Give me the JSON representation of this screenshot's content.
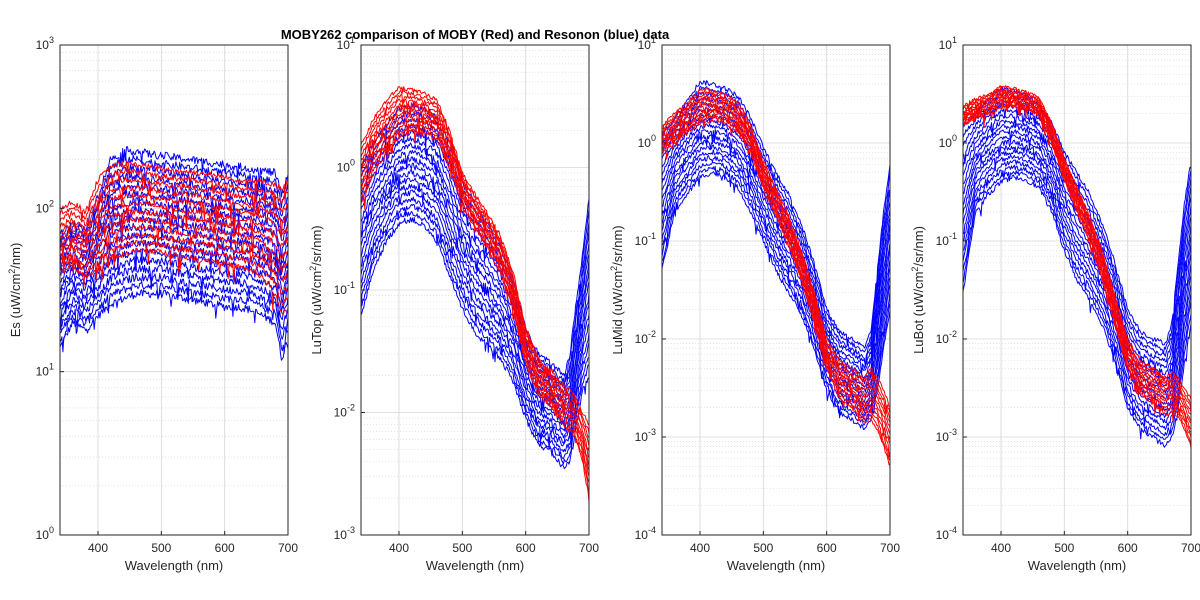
{
  "figure_title": "MOBY262 comparison of MOBY (Red) and Resonon (blue) data",
  "colors": {
    "moby": "#ff0000",
    "resonon": "#0000ff",
    "axis": "#262626"
  },
  "chart_data": [
    {
      "type": "line",
      "panel": "Es",
      "yscale": "log",
      "xlabel": "Wavelength (nm)",
      "ylabel_main": "Es (uW/cm",
      "ylabel_sup": "2",
      "ylabel_tail": "/nm)",
      "xlim": [
        340,
        700
      ],
      "ylim": [
        1,
        1000
      ],
      "xticks": [
        "400",
        "500",
        "600",
        "700"
      ],
      "yticks": [
        {
          "base": "10",
          "exp": "0"
        },
        {
          "base": "10",
          "exp": "1"
        },
        {
          "base": "10",
          "exp": "2"
        },
        {
          "base": "10",
          "exp": "3"
        }
      ],
      "series": [
        {
          "name": "Resonon",
          "color": "#0000ff",
          "count": 18,
          "x": [
            340,
            360,
            380,
            400,
            420,
            440,
            460,
            480,
            500,
            520,
            540,
            560,
            580,
            600,
            620,
            640,
            660,
            680,
            690,
            700
          ],
          "low": [
            14,
            20,
            18,
            22,
            26,
            28,
            30,
            30,
            30,
            29,
            28,
            27,
            26,
            25,
            25,
            24,
            22,
            20,
            12,
            16
          ],
          "high": [
            70,
            80,
            75,
            120,
            200,
            225,
            225,
            215,
            210,
            205,
            200,
            195,
            190,
            185,
            180,
            175,
            170,
            165,
            120,
            160
          ]
        },
        {
          "name": "MOBY",
          "color": "#ff0000",
          "count": 12,
          "x": [
            340,
            360,
            380,
            400,
            420,
            440,
            460,
            480,
            500,
            520,
            540,
            560,
            580,
            600,
            620,
            640,
            660,
            680,
            690,
            700
          ],
          "low": [
            40,
            45,
            38,
            42,
            50,
            52,
            55,
            55,
            54,
            52,
            50,
            49,
            48,
            46,
            44,
            42,
            38,
            30,
            22,
            24
          ],
          "high": [
            100,
            110,
            95,
            150,
            180,
            190,
            185,
            180,
            175,
            170,
            168,
            165,
            160,
            155,
            150,
            148,
            145,
            140,
            130,
            150
          ]
        }
      ]
    },
    {
      "type": "line",
      "panel": "LuTop",
      "yscale": "log",
      "xlabel": "Wavelength (nm)",
      "ylabel_main": "LuTop (uW/cm",
      "ylabel_sup": "2",
      "ylabel_tail": "/sr/nm)",
      "xlim": [
        340,
        700
      ],
      "ylim": [
        0.001,
        10
      ],
      "xticks": [
        "400",
        "500",
        "600",
        "700"
      ],
      "yticks": [
        {
          "base": "10",
          "exp": "-3"
        },
        {
          "base": "10",
          "exp": "-2"
        },
        {
          "base": "10",
          "exp": "-1"
        },
        {
          "base": "10",
          "exp": "0"
        },
        {
          "base": "10",
          "exp": "1"
        }
      ],
      "series": [
        {
          "name": "Resonon",
          "color": "#0000ff",
          "count": 18,
          "x": [
            340,
            360,
            380,
            400,
            420,
            440,
            460,
            480,
            500,
            520,
            540,
            560,
            580,
            600,
            620,
            640,
            660,
            670,
            680,
            690,
            700
          ],
          "low": [
            0.06,
            0.15,
            0.25,
            0.35,
            0.38,
            0.33,
            0.25,
            0.13,
            0.07,
            0.045,
            0.035,
            0.028,
            0.018,
            0.009,
            0.0055,
            0.0048,
            0.0035,
            0.004,
            0.008,
            0.015,
            0.02
          ],
          "high": [
            1.0,
            1.6,
            2.2,
            3.0,
            3.2,
            3.0,
            2.6,
            1.5,
            0.75,
            0.5,
            0.35,
            0.22,
            0.12,
            0.05,
            0.03,
            0.025,
            0.02,
            0.03,
            0.08,
            0.2,
            0.55
          ]
        },
        {
          "name": "MOBY",
          "color": "#ff0000",
          "count": 12,
          "x": [
            340,
            360,
            380,
            400,
            420,
            440,
            460,
            480,
            500,
            520,
            540,
            560,
            580,
            600,
            620,
            640,
            660,
            670,
            680,
            690,
            700
          ],
          "low": [
            0.5,
            0.9,
            1.3,
            1.8,
            2.0,
            1.9,
            1.7,
            1.0,
            0.5,
            0.32,
            0.22,
            0.14,
            0.07,
            0.025,
            0.014,
            0.011,
            0.008,
            0.007,
            0.006,
            0.004,
            0.002
          ],
          "high": [
            1.5,
            2.5,
            3.5,
            4.5,
            4.3,
            4.0,
            3.5,
            2.0,
            0.9,
            0.6,
            0.42,
            0.28,
            0.14,
            0.05,
            0.028,
            0.022,
            0.017,
            0.015,
            0.013,
            0.01,
            0.008
          ]
        }
      ]
    },
    {
      "type": "line",
      "panel": "LuMid",
      "yscale": "log",
      "xlabel": "Wavelength (nm)",
      "ylabel_main": "LuMid (uW/cm",
      "ylabel_sup": "2",
      "ylabel_tail": "/sr/nm)",
      "xlim": [
        340,
        700
      ],
      "ylim": [
        0.0001,
        10
      ],
      "xticks": [
        "400",
        "500",
        "600",
        "700"
      ],
      "yticks": [
        {
          "base": "10",
          "exp": "-4"
        },
        {
          "base": "10",
          "exp": "-3"
        },
        {
          "base": "10",
          "exp": "-2"
        },
        {
          "base": "10",
          "exp": "-1"
        },
        {
          "base": "10",
          "exp": "0"
        },
        {
          "base": "10",
          "exp": "1"
        }
      ],
      "series": [
        {
          "name": "Resonon",
          "color": "#0000ff",
          "count": 18,
          "x": [
            340,
            360,
            380,
            400,
            420,
            440,
            460,
            480,
            500,
            520,
            540,
            560,
            580,
            600,
            620,
            640,
            660,
            670,
            680,
            690,
            700
          ],
          "low": [
            0.05,
            0.2,
            0.3,
            0.45,
            0.5,
            0.45,
            0.35,
            0.2,
            0.1,
            0.05,
            0.03,
            0.018,
            0.008,
            0.003,
            0.0018,
            0.0015,
            0.0012,
            0.0015,
            0.003,
            0.008,
            0.02
          ],
          "high": [
            1.2,
            1.8,
            2.8,
            4.2,
            4.0,
            3.6,
            3.0,
            1.8,
            0.9,
            0.5,
            0.3,
            0.15,
            0.06,
            0.02,
            0.012,
            0.01,
            0.008,
            0.012,
            0.05,
            0.2,
            0.6
          ]
        },
        {
          "name": "MOBY",
          "color": "#ff0000",
          "count": 12,
          "x": [
            340,
            360,
            380,
            400,
            420,
            440,
            460,
            480,
            500,
            520,
            540,
            560,
            580,
            600,
            620,
            640,
            660,
            670,
            680,
            690,
            700
          ],
          "low": [
            0.8,
            1.0,
            1.3,
            1.6,
            1.7,
            1.6,
            1.3,
            0.8,
            0.35,
            0.18,
            0.09,
            0.04,
            0.015,
            0.005,
            0.0025,
            0.002,
            0.0014,
            0.0015,
            0.0012,
            0.0008,
            0.0005
          ],
          "high": [
            1.5,
            2.0,
            2.6,
            3.5,
            3.4,
            3.1,
            2.6,
            1.5,
            0.65,
            0.35,
            0.18,
            0.08,
            0.03,
            0.01,
            0.006,
            0.005,
            0.004,
            0.005,
            0.004,
            0.003,
            0.002
          ]
        }
      ]
    },
    {
      "type": "line",
      "panel": "LuBot",
      "yscale": "log",
      "xlabel": "Wavelength (nm)",
      "ylabel_main": "LuBot (uW/cm",
      "ylabel_sup": "2",
      "ylabel_tail": "/sr/nm)",
      "xlim": [
        340,
        700
      ],
      "ylim": [
        0.0001,
        10
      ],
      "xticks": [
        "400",
        "500",
        "600",
        "700"
      ],
      "yticks": [
        {
          "base": "10",
          "exp": "-4"
        },
        {
          "base": "10",
          "exp": "-3"
        },
        {
          "base": "10",
          "exp": "-2"
        },
        {
          "base": "10",
          "exp": "-1"
        },
        {
          "base": "10",
          "exp": "0"
        },
        {
          "base": "10",
          "exp": "1"
        }
      ],
      "series": [
        {
          "name": "Resonon",
          "color": "#0000ff",
          "count": 18,
          "x": [
            340,
            360,
            380,
            400,
            420,
            440,
            460,
            480,
            500,
            520,
            540,
            560,
            580,
            600,
            620,
            640,
            660,
            670,
            680,
            690,
            700
          ],
          "low": [
            0.03,
            0.2,
            0.3,
            0.4,
            0.45,
            0.42,
            0.35,
            0.2,
            0.08,
            0.04,
            0.025,
            0.014,
            0.006,
            0.002,
            0.0012,
            0.001,
            0.0008,
            0.001,
            0.002,
            0.006,
            0.015
          ],
          "high": [
            1.5,
            2.0,
            2.8,
            3.6,
            3.4,
            3.0,
            2.5,
            1.6,
            0.8,
            0.5,
            0.3,
            0.15,
            0.06,
            0.02,
            0.012,
            0.01,
            0.009,
            0.015,
            0.06,
            0.25,
            0.7
          ]
        },
        {
          "name": "MOBY",
          "color": "#ff0000",
          "count": 12,
          "x": [
            340,
            360,
            380,
            400,
            420,
            440,
            460,
            480,
            500,
            520,
            540,
            560,
            580,
            600,
            620,
            640,
            660,
            670,
            680,
            690,
            700
          ],
          "low": [
            1.5,
            1.8,
            2.0,
            2.3,
            2.4,
            2.2,
            1.9,
            1.0,
            0.42,
            0.2,
            0.1,
            0.04,
            0.014,
            0.005,
            0.0028,
            0.0022,
            0.0017,
            0.0018,
            0.0016,
            0.0012,
            0.0008
          ],
          "high": [
            2.4,
            2.8,
            3.2,
            3.8,
            3.6,
            3.3,
            2.9,
            1.6,
            0.7,
            0.35,
            0.18,
            0.08,
            0.028,
            0.01,
            0.006,
            0.005,
            0.004,
            0.0045,
            0.004,
            0.003,
            0.0025
          ]
        }
      ]
    }
  ]
}
